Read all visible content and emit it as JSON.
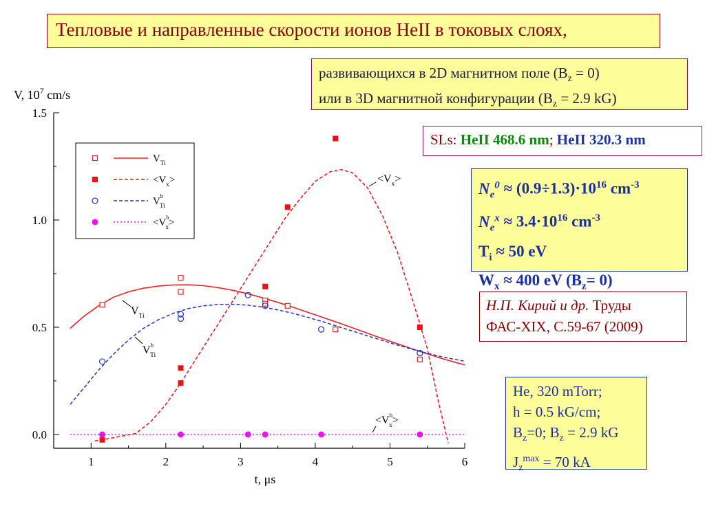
{
  "header": {
    "title": "Тепловые и направленные скорости ионов HeII в токовых слоях,",
    "subtitle_line1_pre": "развивающихся в 2D магнитном поле (B",
    "subtitle_line1_sub": "z",
    "subtitle_line1_post": " = 0)",
    "subtitle_line2_pre": "или в 3D магнитной конфигурации (B",
    "subtitle_line2_sub": "z",
    "subtitle_line2_post": " = 2.9 kG)"
  },
  "spectral_lines": {
    "prefix": "SLs: ",
    "line1": "HeII 468.6 nm",
    "separator": "; ",
    "line2": "HeII 320.3 nm"
  },
  "params": {
    "ne0_label": "N",
    "ne0_sub": "e",
    "ne0_sup": "0",
    "ne0_value": " ≈ (0.9÷1.3)·10",
    "ne0_exp": "16",
    "ne0_unit": " cm",
    "ne0_unit_exp": "-3",
    "nex_label": "N",
    "nex_sub": "e",
    "nex_sup": "x",
    "nex_value": " ≈ 3.4·10",
    "nex_exp": "16",
    "nex_unit": " cm",
    "nex_unit_exp": "-3",
    "ti_label": "T",
    "ti_sub": "i",
    "ti_value": " ≈ 50 eV",
    "wx_label": "W",
    "wx_sub": "x",
    "wx_value": " ≈ 400 eV  (B",
    "wx_bz_sub": "z",
    "wx_tail": "= 0)"
  },
  "reference": {
    "authors": "Н.П. Кирий и др.",
    "journal": " Труды",
    "source": "ФАС-XIX, С.59-67 (2009)"
  },
  "conditions": {
    "line1": "He,  320 mTorr;",
    "line2": "h = 0.5 kG/cm;",
    "line3_a": "B",
    "line3_a_sub": "z",
    "line3_b": "=0; B",
    "line3_b_sub": "z",
    "line3_c": " = 2.9 kG",
    "line4_a": "J",
    "line4_sub": "z",
    "line4_sup": "max",
    "line4_b": " = 70 kA"
  },
  "chart_data": {
    "type": "scatter",
    "xlabel": "t, μs",
    "ylabel": "V, 10",
    "ylabel_exp": "7",
    "ylabel_unit": " cm/s",
    "xlim": [
      0.5,
      6
    ],
    "ylim": [
      0,
      1.5
    ],
    "xticks": [
      1,
      2,
      3,
      4,
      5,
      6
    ],
    "yticks": [
      0.0,
      0.5,
      1.0,
      1.5
    ],
    "ytick_labels": [
      "0.0",
      "0.5",
      "1.0",
      "1.5"
    ],
    "grid": false,
    "legend_position": "top-left",
    "series": [
      {
        "id": "vt",
        "marker": "open-square",
        "color": "#ee2222",
        "line": "solid",
        "points": [
          [
            1.15,
            0.605
          ],
          [
            2.2,
            0.73
          ],
          [
            2.2,
            0.665
          ],
          [
            3.33,
            0.625
          ],
          [
            3.33,
            0.61
          ],
          [
            3.63,
            0.6
          ],
          [
            4.27,
            0.49
          ],
          [
            5.4,
            0.35
          ]
        ],
        "curve": [
          [
            0.72,
            0.495
          ],
          [
            0.9,
            0.55
          ],
          [
            1.1,
            0.6
          ],
          [
            1.3,
            0.64
          ],
          [
            1.5,
            0.665
          ],
          [
            1.7,
            0.682
          ],
          [
            1.9,
            0.692
          ],
          [
            2.1,
            0.697
          ],
          [
            2.3,
            0.698
          ],
          [
            2.5,
            0.694
          ],
          [
            2.7,
            0.685
          ],
          [
            2.9,
            0.672
          ],
          [
            3.1,
            0.656
          ],
          [
            3.3,
            0.637
          ],
          [
            3.5,
            0.616
          ],
          [
            3.7,
            0.594
          ],
          [
            3.9,
            0.57
          ],
          [
            4.1,
            0.546
          ],
          [
            4.3,
            0.522
          ],
          [
            4.5,
            0.497
          ],
          [
            4.7,
            0.472
          ],
          [
            4.9,
            0.447
          ],
          [
            5.1,
            0.423
          ],
          [
            5.3,
            0.399
          ],
          [
            5.5,
            0.376
          ],
          [
            5.7,
            0.354
          ],
          [
            5.9,
            0.334
          ],
          [
            6.0,
            0.325
          ]
        ]
      },
      {
        "id": "vx",
        "marker": "filled-square",
        "color": "#ee1111",
        "line": "dashed",
        "points": [
          [
            1.15,
            -0.025
          ],
          [
            2.2,
            0.31
          ],
          [
            2.2,
            0.24
          ],
          [
            3.33,
            0.69
          ],
          [
            3.63,
            1.06
          ],
          [
            4.27,
            1.38
          ],
          [
            5.4,
            0.5
          ]
        ],
        "curve": [
          [
            1.05,
            -0.03
          ],
          [
            1.3,
            -0.015
          ],
          [
            1.6,
            0.005
          ],
          [
            1.8,
            0.06
          ],
          [
            2.0,
            0.14
          ],
          [
            2.2,
            0.24
          ],
          [
            2.4,
            0.35
          ],
          [
            2.6,
            0.46
          ],
          [
            2.8,
            0.57
          ],
          [
            3.0,
            0.68
          ],
          [
            3.2,
            0.79
          ],
          [
            3.4,
            0.9
          ],
          [
            3.6,
            1.01
          ],
          [
            3.8,
            1.1
          ],
          [
            4.0,
            1.18
          ],
          [
            4.2,
            1.225
          ],
          [
            4.35,
            1.235
          ],
          [
            4.5,
            1.22
          ],
          [
            4.7,
            1.15
          ],
          [
            4.9,
            1.02
          ],
          [
            5.1,
            0.85
          ],
          [
            5.3,
            0.63
          ],
          [
            5.5,
            0.4
          ],
          [
            5.65,
            0.15
          ],
          [
            5.78,
            -0.04
          ]
        ]
      },
      {
        "id": "vtb",
        "marker": "open-circle",
        "color": "#2233cc",
        "line": "dashed",
        "points": [
          [
            1.15,
            0.34
          ],
          [
            2.2,
            0.56
          ],
          [
            2.2,
            0.54
          ],
          [
            3.1,
            0.65
          ],
          [
            3.33,
            0.6
          ],
          [
            4.08,
            0.49
          ],
          [
            5.4,
            0.38
          ]
        ],
        "curve": [
          [
            0.72,
            0.14
          ],
          [
            0.9,
            0.215
          ],
          [
            1.1,
            0.3
          ],
          [
            1.3,
            0.375
          ],
          [
            1.5,
            0.44
          ],
          [
            1.7,
            0.495
          ],
          [
            1.9,
            0.535
          ],
          [
            2.1,
            0.565
          ],
          [
            2.3,
            0.587
          ],
          [
            2.5,
            0.6
          ],
          [
            2.7,
            0.606
          ],
          [
            2.9,
            0.607
          ],
          [
            3.1,
            0.603
          ],
          [
            3.3,
            0.594
          ],
          [
            3.5,
            0.581
          ],
          [
            3.7,
            0.565
          ],
          [
            3.9,
            0.546
          ],
          [
            4.1,
            0.526
          ],
          [
            4.3,
            0.504
          ],
          [
            4.5,
            0.482
          ],
          [
            4.7,
            0.46
          ],
          [
            4.9,
            0.438
          ],
          [
            5.1,
            0.417
          ],
          [
            5.3,
            0.397
          ],
          [
            5.5,
            0.379
          ],
          [
            5.7,
            0.362
          ],
          [
            5.9,
            0.348
          ],
          [
            6.0,
            0.342
          ]
        ]
      },
      {
        "id": "vxb",
        "marker": "filled-circle",
        "color": "#ee11ee",
        "line": "dotted",
        "points": [
          [
            1.15,
            0.0
          ],
          [
            2.2,
            0.0
          ],
          [
            3.1,
            0.0
          ],
          [
            3.33,
            0.0
          ],
          [
            4.08,
            0.0
          ],
          [
            5.4,
            0.0
          ]
        ],
        "curve": [
          [
            0.72,
            0.0
          ],
          [
            6.0,
            0.0
          ]
        ]
      }
    ],
    "legend": [
      {
        "series": "vt",
        "label": "V",
        "sub": "Ti",
        "sup": ""
      },
      {
        "series": "vx",
        "label": "<V",
        "sub": "x",
        "sup": "",
        "close": ">"
      },
      {
        "series": "vtb",
        "label": "V",
        "sub": "Ti",
        "sup": "b"
      },
      {
        "series": "vxb",
        "label": "<V",
        "sub": "x",
        "sup": "b",
        "close": ">"
      }
    ],
    "annotations": [
      {
        "label": "V",
        "sub": "Ti",
        "sup": ""
      },
      {
        "label": "V",
        "sub": "Ti",
        "sup": "b"
      },
      {
        "label": "<V",
        "sub": "x",
        "sup": "",
        "close": ">"
      },
      {
        "label": "<V",
        "sub": "x",
        "sup": "b",
        "close": ">"
      }
    ]
  }
}
